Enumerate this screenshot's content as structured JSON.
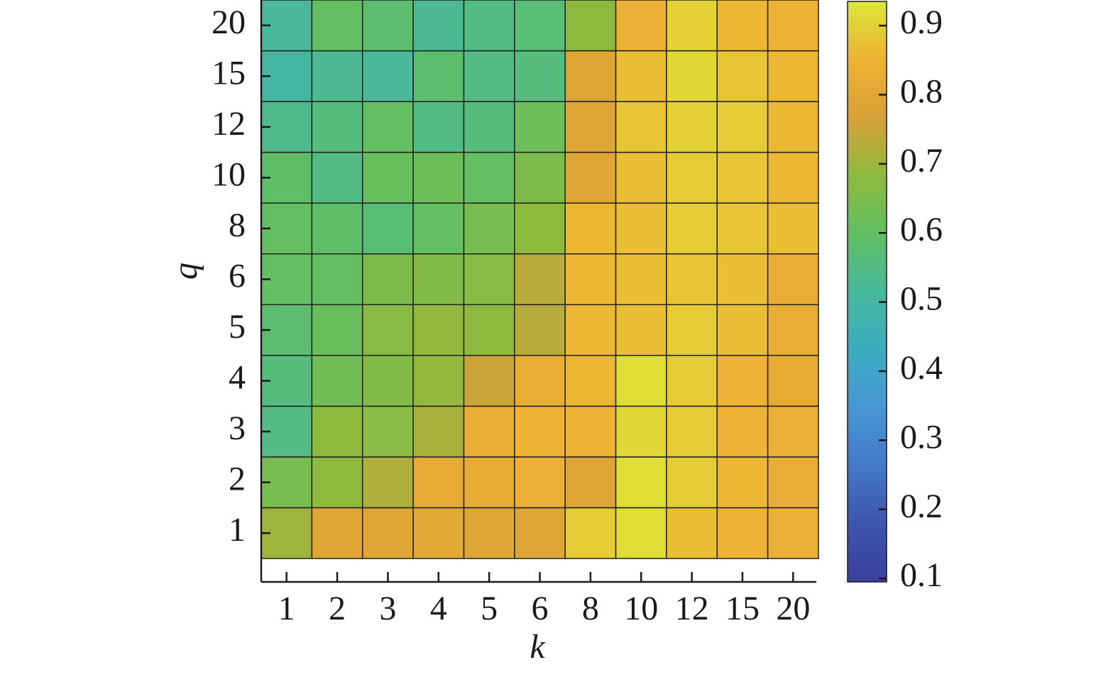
{
  "chart_data": {
    "type": "heatmap",
    "x_label": "k",
    "y_label": "q",
    "x_categories": [
      "1",
      "2",
      "3",
      "4",
      "5",
      "6",
      "8",
      "10",
      "12",
      "15",
      "20"
    ],
    "y_categories": [
      "1",
      "2",
      "3",
      "4",
      "5",
      "6",
      "8",
      "10",
      "12",
      "15",
      "20"
    ],
    "z": [
      [
        0.7,
        0.8,
        0.8,
        0.81,
        0.8,
        0.79,
        0.89,
        0.92,
        0.87,
        0.85,
        0.84
      ],
      [
        0.64,
        0.68,
        0.72,
        0.82,
        0.82,
        0.84,
        0.79,
        0.92,
        0.89,
        0.86,
        0.83
      ],
      [
        0.55,
        0.68,
        0.67,
        0.71,
        0.83,
        0.85,
        0.85,
        0.91,
        0.89,
        0.85,
        0.84
      ],
      [
        0.56,
        0.63,
        0.66,
        0.69,
        0.75,
        0.83,
        0.86,
        0.92,
        0.89,
        0.85,
        0.82
      ],
      [
        0.58,
        0.61,
        0.67,
        0.69,
        0.68,
        0.73,
        0.86,
        0.87,
        0.89,
        0.87,
        0.83
      ],
      [
        0.6,
        0.6,
        0.65,
        0.66,
        0.67,
        0.73,
        0.86,
        0.87,
        0.88,
        0.87,
        0.83
      ],
      [
        0.6,
        0.59,
        0.57,
        0.6,
        0.64,
        0.68,
        0.86,
        0.87,
        0.89,
        0.88,
        0.87
      ],
      [
        0.59,
        0.55,
        0.61,
        0.62,
        0.6,
        0.65,
        0.8,
        0.87,
        0.89,
        0.88,
        0.86
      ],
      [
        0.54,
        0.56,
        0.6,
        0.55,
        0.56,
        0.62,
        0.79,
        0.88,
        0.9,
        0.89,
        0.86
      ],
      [
        0.5,
        0.53,
        0.52,
        0.58,
        0.55,
        0.56,
        0.79,
        0.87,
        0.91,
        0.88,
        0.86
      ],
      [
        0.52,
        0.6,
        0.58,
        0.53,
        0.55,
        0.57,
        0.68,
        0.84,
        0.9,
        0.86,
        0.85
      ]
    ],
    "clim": [
      0.095,
      0.935
    ],
    "cticks": [
      0.1,
      0.2,
      0.3,
      0.4,
      0.5,
      0.6,
      0.7,
      0.8,
      0.9
    ],
    "colormap": [
      "#3b3f9e",
      "#3d55ac",
      "#4479c8",
      "#4896d4",
      "#3cacc0",
      "#48b89c",
      "#62bf62",
      "#8eba3e",
      "#d8a038",
      "#eeb234",
      "#dbe838"
    ]
  }
}
